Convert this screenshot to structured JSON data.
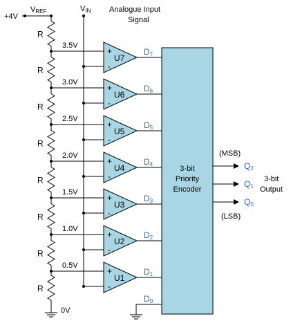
{
  "supply": {
    "label": "+4V"
  },
  "vref": {
    "main": "V",
    "sub": "REF"
  },
  "vin": {
    "main": "V",
    "sub": "IN"
  },
  "input_desc": {
    "line1": "Analogue Input",
    "line2": "Signal"
  },
  "resistor_label": "R",
  "tap_voltages": [
    "3.5V",
    "3.0V",
    "2.5V",
    "2.0V",
    "1.5V",
    "1.0V",
    "0.5V"
  ],
  "ground_label": "0V",
  "comparators": [
    "U7",
    "U6",
    "U5",
    "U4",
    "U3",
    "U2",
    "U1"
  ],
  "comparator_pins": {
    "plus": "+",
    "minus": "-"
  },
  "d_outputs": [
    {
      "main": "D",
      "sub": "7"
    },
    {
      "main": "D",
      "sub": "6"
    },
    {
      "main": "D",
      "sub": "5"
    },
    {
      "main": "D",
      "sub": "4"
    },
    {
      "main": "D",
      "sub": "3"
    },
    {
      "main": "D",
      "sub": "2"
    },
    {
      "main": "D",
      "sub": "1"
    },
    {
      "main": "D",
      "sub": "0"
    }
  ],
  "encoder": {
    "line1": "3-bit",
    "line2": "Priority",
    "line3": "Encoder"
  },
  "q_outputs": [
    {
      "main": "Q",
      "sub": "2"
    },
    {
      "main": "Q",
      "sub": "1"
    },
    {
      "main": "Q",
      "sub": "0"
    }
  ],
  "msb_label": "(MSB)",
  "lsb_label": "(LSB)",
  "output_desc": {
    "line1": "3-bit",
    "line2": "Output"
  },
  "colors": {
    "comparator_fill": "#a9d6e5",
    "encoder_fill": "#a9d6e5",
    "accent_text": "#2a6db5"
  }
}
